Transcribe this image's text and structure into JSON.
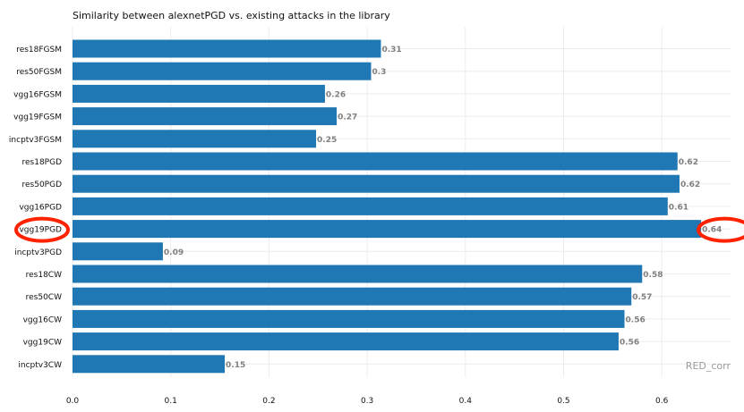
{
  "chart_data": {
    "type": "bar",
    "orientation": "horizontal",
    "title": "Similarity between alexnetPGD vs. existing attacks in the library",
    "categories": [
      "res18FGSM",
      "res50FGSM",
      "vgg16FGSM",
      "vgg19FGSM",
      "incptv3FGSM",
      "res18PGD",
      "res50PGD",
      "vgg16PGD",
      "vgg19PGD",
      "incptv3PGD",
      "res18CW",
      "res50CW",
      "vgg16CW",
      "vgg19CW",
      "incptv3CW"
    ],
    "values": [
      0.314,
      0.304,
      0.257,
      0.269,
      0.248,
      0.616,
      0.618,
      0.606,
      0.64,
      0.092,
      0.58,
      0.569,
      0.562,
      0.556,
      0.155
    ],
    "data_labels": [
      "0.31",
      "0.3",
      "0.26",
      "0.27",
      "0.25",
      "0.62",
      "0.62",
      "0.61",
      "0.64",
      "0.09",
      "0.58",
      "0.57",
      "0.56",
      "0.56",
      "0.15"
    ],
    "xlim": [
      0,
      0.67
    ],
    "xticks": [
      0.0,
      0.1,
      0.2,
      0.3,
      0.4,
      0.5,
      0.6
    ],
    "xtick_labels": [
      "0.0",
      "0.1",
      "0.2",
      "0.3",
      "0.4",
      "0.5",
      "0.6"
    ],
    "xlabel": "",
    "ylabel": "",
    "grid": true,
    "highlighted_category": "vgg19PGD",
    "watermark": "RED_corr",
    "colors": {
      "bar": "#1f77b4",
      "highlight": "#ff2200",
      "label": "#7f7f7f",
      "grid": "#ececec"
    }
  }
}
